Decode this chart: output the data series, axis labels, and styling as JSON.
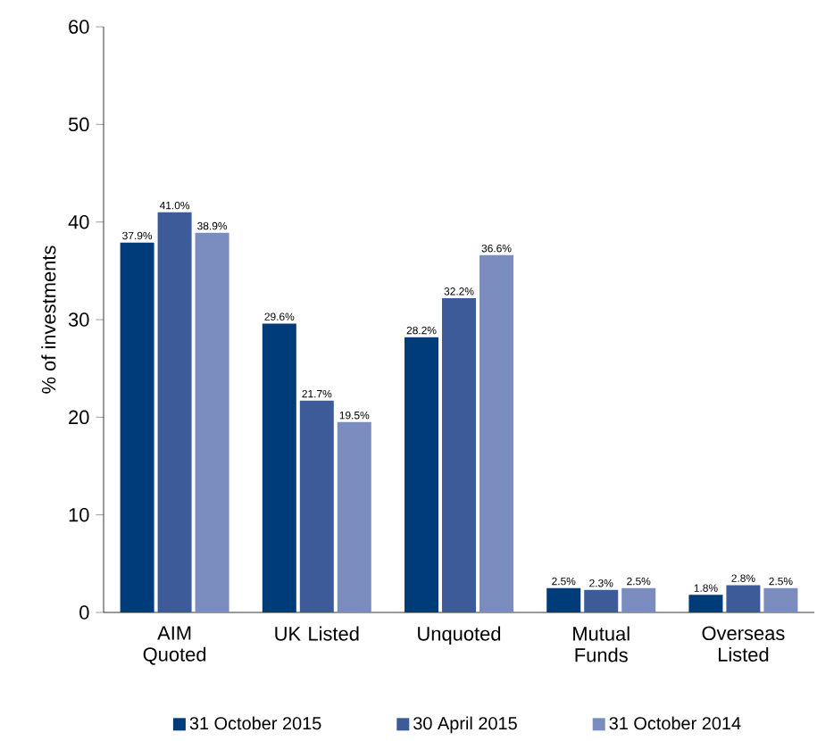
{
  "chart_data": {
    "type": "bar",
    "ylabel": "% of investments",
    "categories": [
      "AIM Quoted",
      "UK Listed",
      "Unquoted",
      "Mutual Funds",
      "Overseas Listed"
    ],
    "series": [
      {
        "name": "31 October 2015",
        "color": "#003b7a",
        "values": [
          37.9,
          29.6,
          28.2,
          2.5,
          1.8
        ],
        "value_labels": [
          "37.9%",
          "29.6%",
          "28.2%",
          "2.5%",
          "1.8%"
        ]
      },
      {
        "name": "30 April 2015",
        "color": "#3d5a99",
        "values": [
          41.0,
          21.7,
          32.2,
          2.3,
          2.8
        ],
        "value_labels": [
          "41.0%",
          "21.7%",
          "32.2%",
          "2.3%",
          "2.8%"
        ]
      },
      {
        "name": "31 October 2014",
        "color": "#7b8cbf",
        "values": [
          38.9,
          19.5,
          36.6,
          2.5,
          2.5
        ],
        "value_labels": [
          "38.9%",
          "19.5%",
          "36.6%",
          "2.5%",
          "2.5%"
        ]
      }
    ],
    "ylim": [
      0,
      60
    ],
    "yticks": [
      0,
      10,
      20,
      30,
      40,
      50,
      60
    ],
    "grid": false,
    "legend": "bottom"
  }
}
